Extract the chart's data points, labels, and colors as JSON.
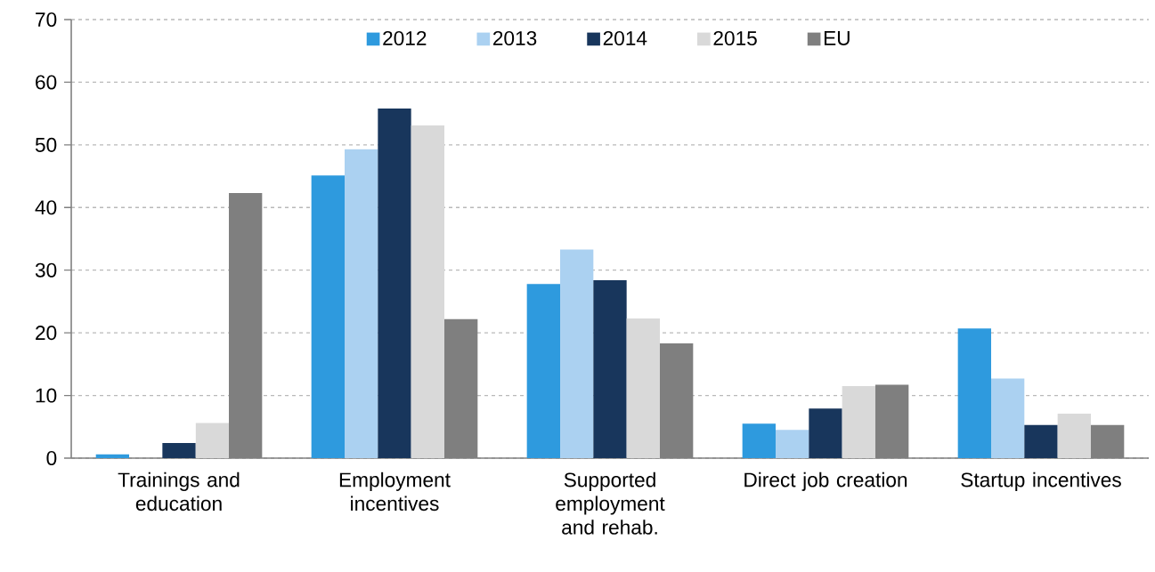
{
  "chart_data": {
    "type": "bar",
    "categories": [
      "Trainings and education",
      "Employment incentives",
      "Supported employment and rehab.",
      "Direct job creation",
      "Startup incentives"
    ],
    "series": [
      {
        "name": "2012",
        "color": "#2e9ade",
        "values": [
          0.6,
          45.1,
          27.8,
          5.5,
          20.7
        ]
      },
      {
        "name": "2013",
        "color": "#abd1f1",
        "values": [
          null,
          49.3,
          33.3,
          4.5,
          12.7
        ]
      },
      {
        "name": "2014",
        "color": "#18365c",
        "values": [
          2.4,
          55.8,
          28.4,
          7.9,
          5.3
        ]
      },
      {
        "name": "2015",
        "color": "#d9d9d9",
        "values": [
          5.6,
          53.1,
          22.3,
          11.5,
          7.1
        ]
      },
      {
        "name": "EU",
        "color": "#7f7f7f",
        "values": [
          42.3,
          22.2,
          18.3,
          11.7,
          5.3
        ]
      }
    ],
    "ylim": [
      0,
      70
    ],
    "yticks": [
      0,
      10,
      20,
      30,
      40,
      50,
      60,
      70
    ],
    "grid": "y",
    "legend": "top"
  }
}
